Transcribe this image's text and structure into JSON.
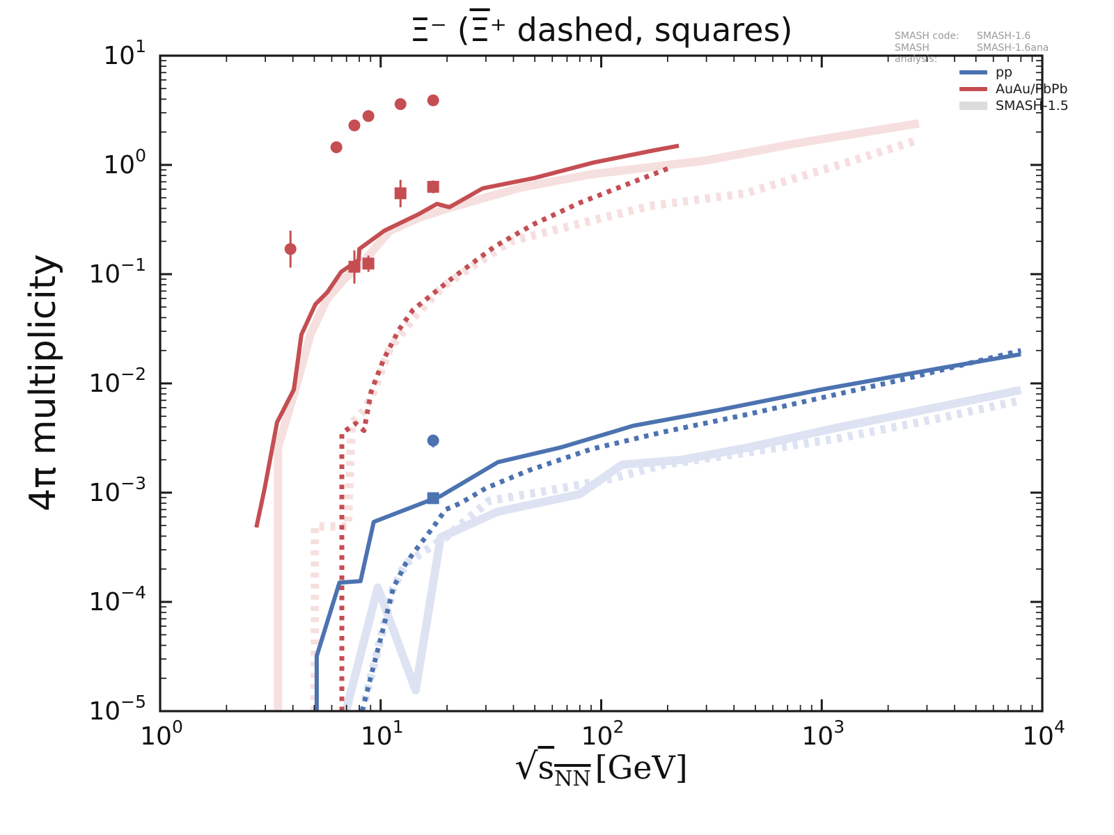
{
  "title": {
    "part1": "Ξ⁻ (",
    "part2": "Ξ",
    "part3": "⁺ dashed, squares)"
  },
  "annotation": {
    "l1_label": "SMASH code:",
    "l1_value": "SMASH-1.6",
    "l2_label": "SMASH analysis:",
    "l2_value": "SMASH-1.6ana"
  },
  "legend": {
    "items": [
      {
        "label": "pp",
        "color": "#4c72b0",
        "style": "line"
      },
      {
        "label": "AuAu/PbPb",
        "color": "#c44e52",
        "style": "line"
      },
      {
        "label": "SMASH-1.5",
        "color": "#dcdcdc",
        "style": "band"
      }
    ]
  },
  "axes": {
    "ylabel": "4π multiplicity",
    "xlabel_sqrt": "√",
    "xlabel_sym": "s",
    "xlabel_sub": "NN",
    "xlabel_unit": "[GeV]",
    "x_exponents": [
      0,
      1,
      2,
      3,
      4
    ],
    "y_exponents": [
      1,
      0,
      -1,
      -2,
      -3,
      -4,
      -5
    ]
  },
  "chart_data": {
    "type": "line",
    "title": "Ξ⁻ (Ξ̄⁺ dashed, squares)",
    "xlabel": "sqrt(s_NN) [GeV]",
    "ylabel": "4π multiplicity",
    "xscale": "log",
    "yscale": "log",
    "xlim": [
      1,
      10000
    ],
    "ylim": [
      1e-05,
      10
    ],
    "grid": false,
    "legend_position": "upper right",
    "series": [
      {
        "name": "smash15-auau-xi-minus",
        "legend": "SMASH-1.5",
        "color": "#f6dfdf",
        "width": 12,
        "dash": "none",
        "points": [
          [
            3.42,
            1e-05
          ],
          [
            3.42,
            0.0026
          ],
          [
            4.1,
            0.0088
          ],
          [
            4.8,
            0.028
          ],
          [
            5.7,
            0.059
          ],
          [
            6.9,
            0.092
          ],
          [
            8.2,
            0.125
          ],
          [
            11,
            0.25
          ],
          [
            15,
            0.33
          ],
          [
            21,
            0.41
          ],
          [
            43,
            0.62
          ],
          [
            90,
            0.82
          ],
          [
            300,
            1.1
          ],
          [
            800,
            1.6
          ],
          [
            2760,
            2.4
          ]
        ]
      },
      {
        "name": "smash15-auau-xi-plus",
        "legend": "SMASH-1.5",
        "color": "#f6dfdf",
        "width": 12,
        "dash": "7 9",
        "points": [
          [
            5.03,
            1e-05
          ],
          [
            5.03,
            0.00049
          ],
          [
            7.1,
            0.00049
          ],
          [
            7.4,
            0.0043
          ],
          [
            8.3,
            0.0055
          ],
          [
            9.1,
            0.0076
          ],
          [
            11,
            0.021
          ],
          [
            14.7,
            0.044
          ],
          [
            19.3,
            0.078
          ],
          [
            28,
            0.13
          ],
          [
            39,
            0.2
          ],
          [
            80,
            0.29
          ],
          [
            166,
            0.42
          ],
          [
            450,
            0.55
          ],
          [
            1200,
            1.0
          ],
          [
            2760,
            1.7
          ]
        ]
      },
      {
        "name": "smash15-pp-xi-minus",
        "legend": "SMASH-1.5",
        "color": "#dde3f2",
        "width": 12,
        "dash": "none",
        "points": [
          [
            6.96,
            1e-05
          ],
          [
            9.7,
            0.000135
          ],
          [
            14.4,
            1.55e-05
          ],
          [
            18.7,
            0.00039
          ],
          [
            34,
            0.00067
          ],
          [
            80,
            0.00097
          ],
          [
            124,
            0.0018
          ],
          [
            233,
            0.002
          ],
          [
            470,
            0.0026
          ],
          [
            1150,
            0.0039
          ],
          [
            3400,
            0.0061
          ],
          [
            8000,
            0.0087
          ]
        ]
      },
      {
        "name": "smash15-pp-xi-plus",
        "legend": "SMASH-1.5",
        "color": "#dde3f2",
        "width": 12,
        "dash": "7 9",
        "points": [
          [
            8.24,
            1e-05
          ],
          [
            8.99,
            2e-05
          ],
          [
            10.1,
            5e-05
          ],
          [
            11.4,
            0.000134
          ],
          [
            13,
            0.000225
          ],
          [
            19.7,
            0.00039
          ],
          [
            31,
            0.00084
          ],
          [
            66,
            0.0011
          ],
          [
            113,
            0.00135
          ],
          [
            192,
            0.0018
          ],
          [
            440,
            0.0023
          ],
          [
            1150,
            0.0031
          ],
          [
            3400,
            0.0048
          ],
          [
            8000,
            0.007
          ]
        ]
      },
      {
        "name": "smash16-auau-xi-minus",
        "legend": "AuAu/PbPb",
        "color": "#c44e52",
        "width": 6,
        "dash": "none",
        "points": [
          [
            2.73,
            0.00048
          ],
          [
            2.98,
            0.0011
          ],
          [
            3.39,
            0.0044
          ],
          [
            4.04,
            0.0088
          ],
          [
            4.37,
            0.028
          ],
          [
            5.06,
            0.053
          ],
          [
            5.72,
            0.068
          ],
          [
            6.62,
            0.105
          ],
          [
            7.95,
            0.135
          ],
          [
            8.0,
            0.17
          ],
          [
            10.4,
            0.25
          ],
          [
            14.7,
            0.35
          ],
          [
            18,
            0.44
          ],
          [
            20.5,
            0.41
          ],
          [
            29,
            0.61
          ],
          [
            50,
            0.76
          ],
          [
            92,
            1.05
          ],
          [
            174,
            1.36
          ],
          [
            225,
            1.5
          ]
        ]
      },
      {
        "name": "smash16-auau-xi-plus",
        "legend": "AuAu/PbPb",
        "color": "#c44e52",
        "width": 7,
        "dash": "6.5 8",
        "points": [
          [
            6.67,
            1e-05
          ],
          [
            6.67,
            0.0035
          ],
          [
            7.7,
            0.0043
          ],
          [
            8.4,
            0.0037
          ],
          [
            9.05,
            0.0084
          ],
          [
            10.3,
            0.0165
          ],
          [
            12.1,
            0.031
          ],
          [
            14,
            0.047
          ],
          [
            21,
            0.091
          ],
          [
            33,
            0.18
          ],
          [
            50,
            0.29
          ],
          [
            80,
            0.45
          ],
          [
            130,
            0.66
          ],
          [
            210,
            0.96
          ]
        ]
      },
      {
        "name": "smash16-pp-xi-minus",
        "legend": "pp",
        "color": "#4c72b0",
        "width": 6,
        "dash": "none",
        "points": [
          [
            5.13,
            1e-05
          ],
          [
            5.13,
            3.2e-05
          ],
          [
            6.5,
            0.00015
          ],
          [
            8.1,
            0.000155
          ],
          [
            9.3,
            0.00054
          ],
          [
            18.7,
            0.00093
          ],
          [
            34,
            0.0019
          ],
          [
            66,
            0.0026
          ],
          [
            140,
            0.0041
          ],
          [
            340,
            0.0057
          ],
          [
            1000,
            0.0088
          ],
          [
            3400,
            0.0137
          ],
          [
            8000,
            0.0185
          ]
        ]
      },
      {
        "name": "smash16-pp-xi-plus",
        "legend": "pp",
        "color": "#4c72b0",
        "width": 7,
        "dash": "6.5 8",
        "points": [
          [
            8.24,
            1e-05
          ],
          [
            8.99,
            2e-05
          ],
          [
            10.1,
            5e-05
          ],
          [
            11.4,
            0.000134
          ],
          [
            13,
            0.000225
          ],
          [
            15.3,
            0.00035
          ],
          [
            17.4,
            0.00049
          ],
          [
            19.7,
            0.0007
          ],
          [
            23,
            0.0008
          ],
          [
            30,
            0.0011
          ],
          [
            47,
            0.0016
          ],
          [
            90,
            0.0025
          ],
          [
            192,
            0.0036
          ],
          [
            440,
            0.0051
          ],
          [
            2400,
            0.011
          ],
          [
            8000,
            0.02
          ]
        ]
      }
    ],
    "points": [
      {
        "name": "exp-auau-xi-minus",
        "marker": "circle",
        "color": "#c44e52",
        "data": [
          [
            3.9,
            0.17,
            0.115,
            0.25
          ],
          [
            6.3,
            1.45,
            1.3,
            1.62
          ],
          [
            7.6,
            2.3,
            2.05,
            2.58
          ],
          [
            8.8,
            2.8,
            2.5,
            3.1
          ],
          [
            12.3,
            3.6,
            3.42,
            3.8
          ],
          [
            17.3,
            3.9,
            3.55,
            4.3
          ]
        ]
      },
      {
        "name": "exp-auau-xi-plus",
        "marker": "square",
        "color": "#c44e52",
        "data": [
          [
            7.6,
            0.117,
            0.082,
            0.165
          ],
          [
            8.8,
            0.125,
            0.105,
            0.148
          ],
          [
            12.3,
            0.55,
            0.41,
            0.73
          ],
          [
            17.3,
            0.63,
            0.55,
            0.72
          ]
        ]
      },
      {
        "name": "exp-pp-xi-minus",
        "marker": "circle",
        "color": "#4c72b0",
        "data": [
          [
            17.3,
            0.003,
            0.0026,
            0.0034
          ]
        ]
      },
      {
        "name": "exp-pp-xi-plus",
        "marker": "square",
        "color": "#4c72b0",
        "data": [
          [
            17.3,
            0.00089,
            0.00082,
            0.00096
          ]
        ]
      }
    ]
  }
}
